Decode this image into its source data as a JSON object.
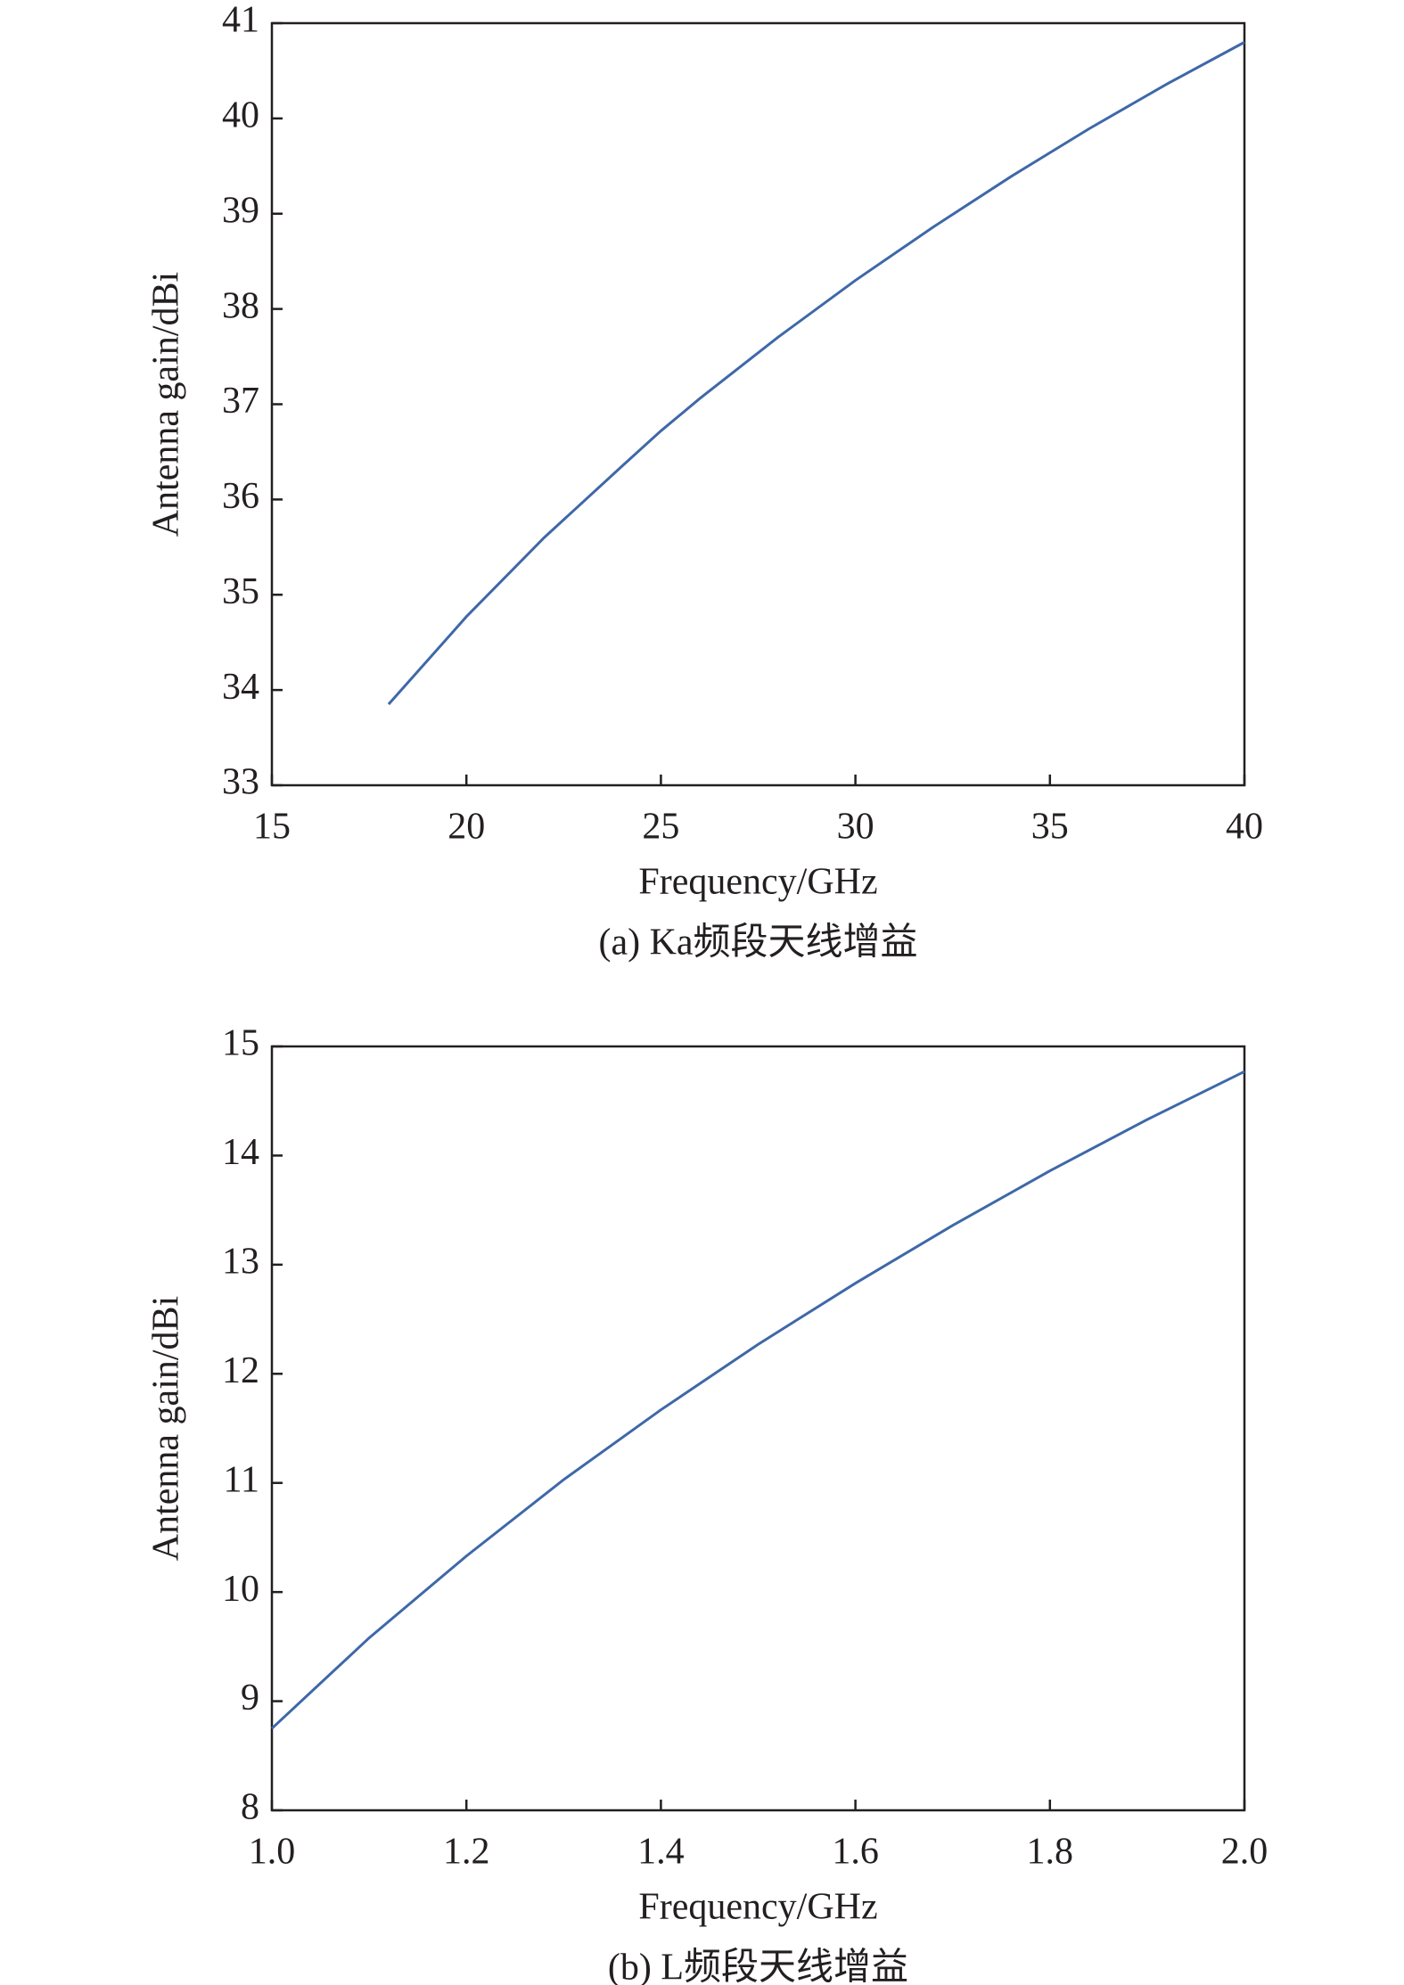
{
  "chart_data": [
    {
      "type": "line",
      "caption": "(a) Ka频段天线增益",
      "xlabel": "Frequency/GHz",
      "ylabel": "Antenna gain/dBi",
      "x": [
        18,
        20,
        22,
        24,
        25,
        26,
        28,
        30,
        32,
        34,
        36,
        38,
        40
      ],
      "series": [
        {
          "color": "#3e68a8",
          "values": [
            33.85,
            34.77,
            35.6,
            36.35,
            36.72,
            37.06,
            37.7,
            38.3,
            38.86,
            39.39,
            39.89,
            40.36,
            40.8
          ]
        }
      ],
      "xlim": [
        15,
        40
      ],
      "xticks": [
        15,
        20,
        25,
        30,
        35,
        40
      ],
      "ylim": [
        33,
        41
      ],
      "yticks": [
        33,
        34,
        35,
        36,
        37,
        38,
        39,
        40,
        41
      ]
    },
    {
      "type": "line",
      "caption": "(b) L频段天线增益",
      "xlabel": "Frequency/GHz",
      "ylabel": "Antenna gain/dBi",
      "x": [
        1.0,
        1.1,
        1.2,
        1.3,
        1.4,
        1.5,
        1.6,
        1.7,
        1.8,
        1.9,
        2.0
      ],
      "series": [
        {
          "color": "#3e68a8",
          "values": [
            8.75,
            9.58,
            10.33,
            11.03,
            11.67,
            12.27,
            12.83,
            13.36,
            13.86,
            14.33,
            14.77
          ]
        }
      ],
      "xlim": [
        1,
        2
      ],
      "xticks": [
        {
          "value": 1,
          "label": "1.0"
        },
        1.2,
        1.4,
        1.6,
        1.8,
        {
          "value": 2,
          "label": "2.0"
        }
      ],
      "ylim": [
        8,
        15
      ],
      "yticks": [
        8,
        9,
        10,
        11,
        12,
        13,
        14,
        15
      ]
    }
  ]
}
